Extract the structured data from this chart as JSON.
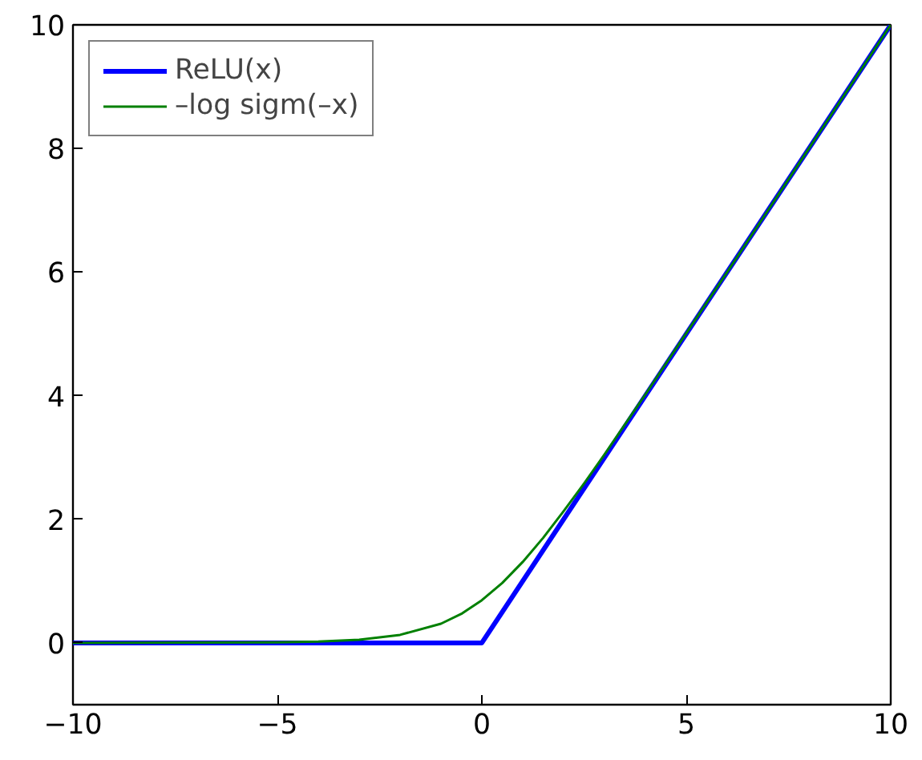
{
  "chart_data": {
    "type": "line",
    "x": [
      -10,
      -5,
      -4,
      -3,
      -2,
      -1,
      -0.5,
      0,
      0.5,
      1,
      1.5,
      2,
      2.5,
      3,
      4,
      5,
      6,
      7,
      8,
      9,
      10
    ],
    "series": [
      {
        "name": "ReLU(x)",
        "color": "#0000ff",
        "x": [
          -10,
          0,
          10
        ],
        "values": [
          0,
          0,
          10
        ]
      },
      {
        "name": "–log sigm(–x)",
        "color": "#008000",
        "values": [
          0.0,
          0.01,
          0.02,
          0.05,
          0.13,
          0.31,
          0.47,
          0.69,
          0.97,
          1.31,
          1.7,
          2.13,
          2.58,
          3.05,
          4.02,
          5.01,
          6.0,
          7.0,
          8.0,
          9.0,
          10.0
        ]
      }
    ],
    "xlim": [
      -10,
      10
    ],
    "ylim": [
      -1,
      10
    ],
    "xticks": [
      -10,
      -5,
      0,
      5,
      10
    ],
    "yticks": [
      0,
      2,
      4,
      6,
      8,
      10
    ],
    "grid": false,
    "legend": "top left",
    "marker": "none",
    "line_style": "solid"
  }
}
